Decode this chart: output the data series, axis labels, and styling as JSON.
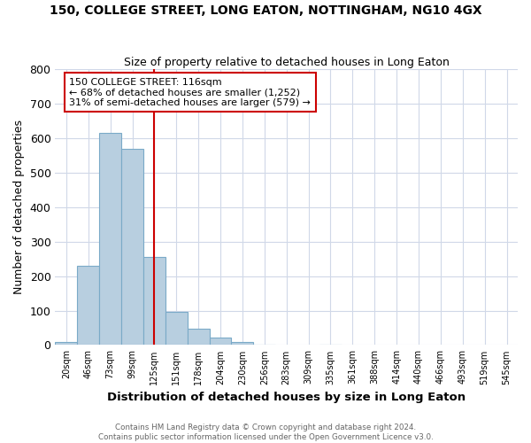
{
  "title": "150, COLLEGE STREET, LONG EATON, NOTTINGHAM, NG10 4GX",
  "subtitle": "Size of property relative to detached houses in Long Eaton",
  "xlabel": "Distribution of detached houses by size in Long Eaton",
  "ylabel": "Number of detached properties",
  "footer_line1": "Contains HM Land Registry data © Crown copyright and database right 2024.",
  "footer_line2": "Contains public sector information licensed under the Open Government Licence v3.0.",
  "bins": [
    "20sqm",
    "46sqm",
    "73sqm",
    "99sqm",
    "125sqm",
    "151sqm",
    "178sqm",
    "204sqm",
    "230sqm",
    "256sqm",
    "283sqm",
    "309sqm",
    "335sqm",
    "361sqm",
    "388sqm",
    "414sqm",
    "440sqm",
    "466sqm",
    "493sqm",
    "519sqm",
    "545sqm"
  ],
  "bar_heights": [
    10,
    230,
    615,
    570,
    255,
    95,
    47,
    22,
    10,
    2,
    0,
    0,
    2,
    0,
    0,
    0,
    0,
    0,
    0,
    0
  ],
  "bar_color": "#b8cfe0",
  "bar_edge_color": "#7aaac8",
  "ylim": [
    0,
    800
  ],
  "yticks": [
    0,
    100,
    200,
    300,
    400,
    500,
    600,
    700,
    800
  ],
  "red_line_bin_index": 4,
  "annotation_text": "150 COLLEGE STREET: 116sqm\n← 68% of detached houses are smaller (1,252)\n31% of semi-detached houses are larger (579) →",
  "annotation_box_color": "#ffffff",
  "annotation_border_color": "#cc0000",
  "background_color": "#ffffff",
  "grid_color": "#d0d8e8"
}
